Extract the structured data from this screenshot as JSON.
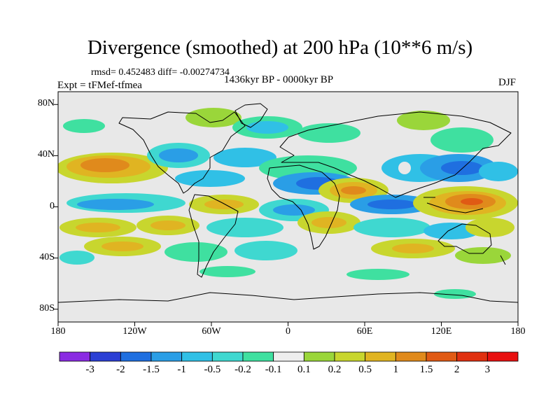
{
  "title": "Divergence (smoothed) at 200 hPa (10**6 m/s)",
  "stats_line": "rmsd= 0.452483 diff= -0.00274734",
  "experiment": "Expt = tFMef-tfmea",
  "period": "1436kyr BP - 0000kyr BP",
  "season": "DJF",
  "map": {
    "lat_ticks": [
      "80N",
      "40N",
      "0",
      "40S",
      "80S"
    ],
    "lat_values": [
      80,
      40,
      0,
      -40,
      -80
    ],
    "lon_ticks": [
      "180",
      "120W",
      "60W",
      "0",
      "60E",
      "120E",
      "180"
    ],
    "lon_values": [
      -180,
      -120,
      -60,
      0,
      60,
      120,
      180
    ],
    "background_color": "#e8e8e8"
  },
  "colorbar": {
    "labels": [
      "-3",
      "-2",
      "-1.5",
      "-1",
      "-0.5",
      "-0.2",
      "-0.1",
      "0.1",
      "0.2",
      "0.5",
      "1",
      "1.5",
      "2",
      "3"
    ],
    "colors": [
      "#8a2be2",
      "#2b3fd4",
      "#1f6fe0",
      "#2a9ee6",
      "#30c0e6",
      "#3fd8d0",
      "#3fe0a0",
      "#eeeeee",
      "#9ad63a",
      "#c8d62e",
      "#e0b422",
      "#e08a1c",
      "#e05a14",
      "#e03010",
      "#e81010"
    ]
  }
}
